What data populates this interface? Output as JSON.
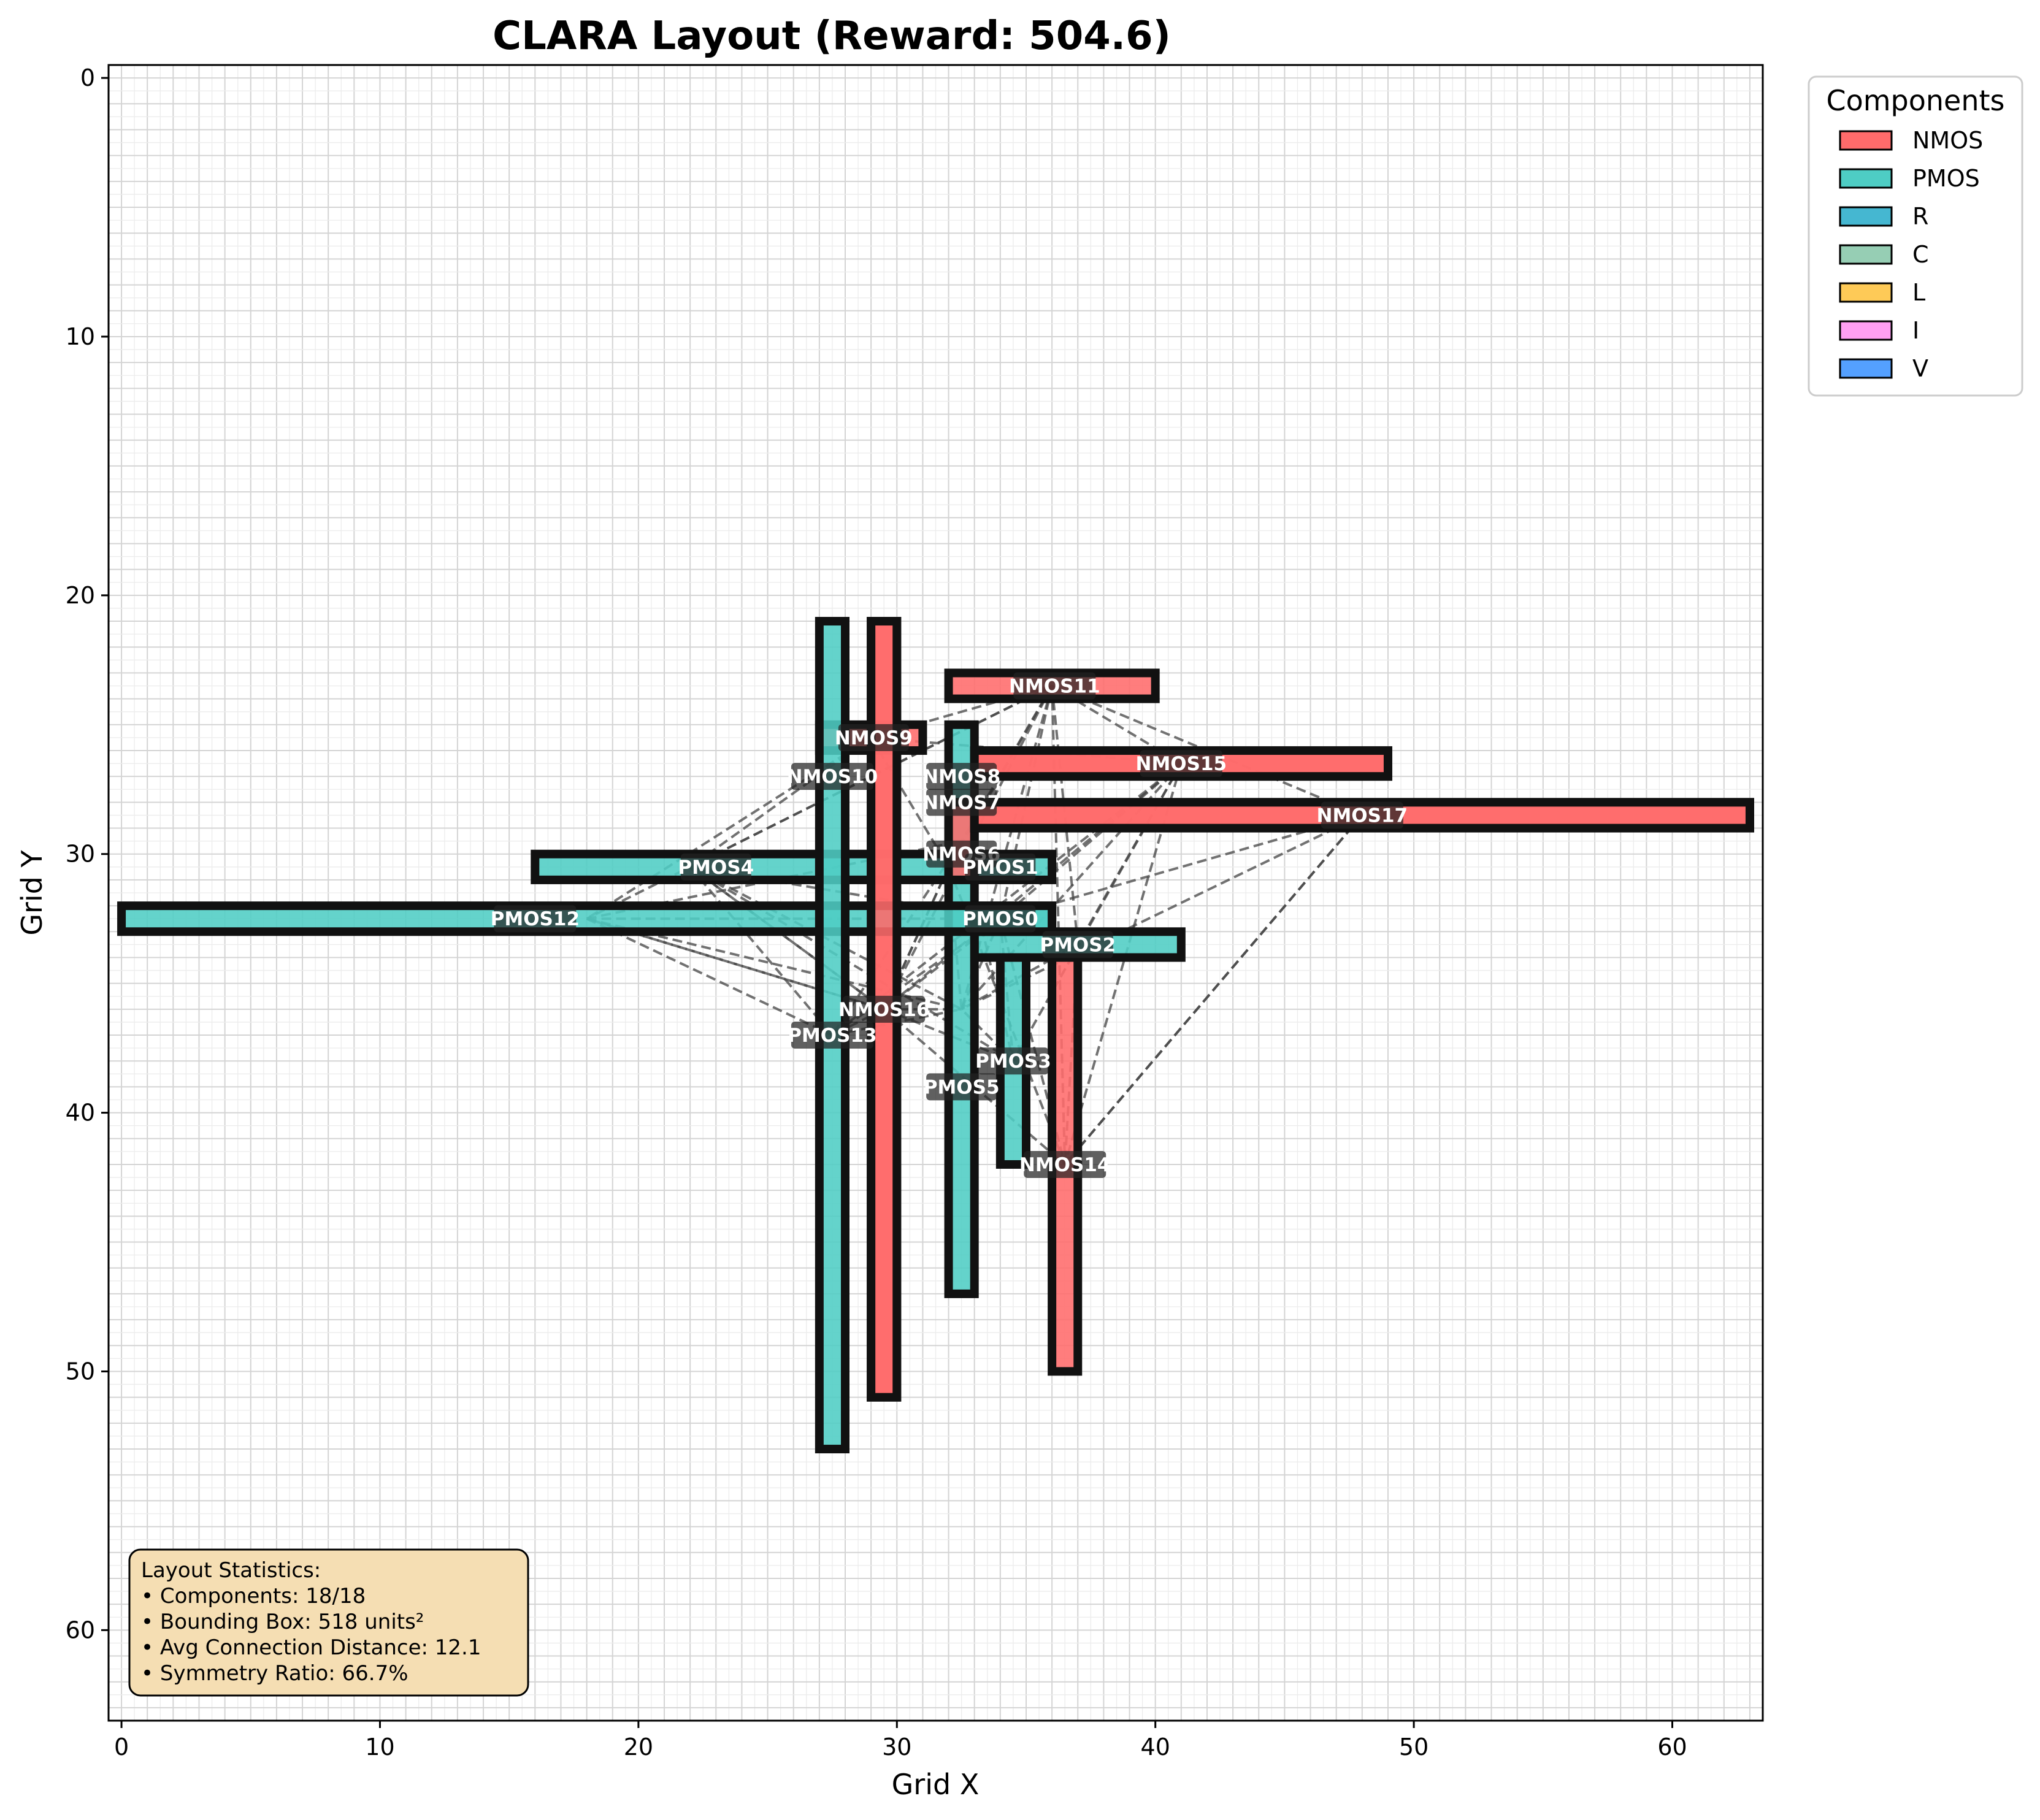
{
  "chart_data": {
    "type": "layout",
    "title": "CLARA Layout (Reward: 504.6)",
    "xlabel": "Grid X",
    "ylabel": "Grid Y",
    "xlim": [
      -0.5,
      63.5
    ],
    "ylim": [
      63.5,
      -0.5
    ],
    "y_inverted": true,
    "x_ticks": [
      0,
      10,
      20,
      30,
      40,
      50,
      60
    ],
    "y_ticks": [
      0,
      10,
      20,
      30,
      40,
      50,
      60
    ],
    "grid": true,
    "legend": {
      "title": "Components",
      "placement": "outside-top-right",
      "entries": [
        {
          "label": "NMOS",
          "color": "#ff6b6b"
        },
        {
          "label": "PMOS",
          "color": "#4ecdc4"
        },
        {
          "label": "R",
          "color": "#45b7d1"
        },
        {
          "label": "C",
          "color": "#96ceb4"
        },
        {
          "label": "L",
          "color": "#feca57"
        },
        {
          "label": "I",
          "color": "#ff9ff3"
        },
        {
          "label": "V",
          "color": "#54a0ff"
        }
      ]
    },
    "components": [
      {
        "name": "PMOS0",
        "type": "PMOS",
        "x": 32,
        "y": 32,
        "w": 4,
        "h": 1
      },
      {
        "name": "PMOS1",
        "type": "PMOS",
        "x": 28,
        "y": 30,
        "w": 8,
        "h": 1
      },
      {
        "name": "PMOS2",
        "type": "PMOS",
        "x": 33,
        "y": 33,
        "w": 8,
        "h": 1
      },
      {
        "name": "PMOS3",
        "type": "PMOS",
        "x": 34,
        "y": 34,
        "w": 1,
        "h": 8
      },
      {
        "name": "PMOS4",
        "type": "PMOS",
        "x": 16,
        "y": 30,
        "w": 12,
        "h": 1
      },
      {
        "name": "PMOS5",
        "type": "PMOS",
        "x": 32,
        "y": 25,
        "w": 1,
        "h": 22
      },
      {
        "name": "NMOS6",
        "type": "NMOS",
        "x": 32,
        "y": 28,
        "w": 1,
        "h": 3
      },
      {
        "name": "NMOS7",
        "type": "NMOS",
        "x": 33,
        "y": 28,
        "w": 30,
        "h": 1
      },
      {
        "name": "NMOS8",
        "type": "NMOS",
        "x": 33,
        "y": 26,
        "w": 16,
        "h": 1
      },
      {
        "name": "NMOS9",
        "type": "NMOS",
        "x": 27,
        "y": 25,
        "w": 4,
        "h": 1
      },
      {
        "name": "NMOS10",
        "type": "NMOS",
        "x": 29,
        "y": 21,
        "w": 1,
        "h": 30
      },
      {
        "name": "NMOS11",
        "type": "NMOS",
        "x": 32,
        "y": 23,
        "w": 8,
        "h": 1
      },
      {
        "name": "PMOS12",
        "type": "PMOS",
        "x": 0,
        "y": 32,
        "w": 36,
        "h": 1
      },
      {
        "name": "PMOS13",
        "type": "PMOS",
        "x": 27,
        "y": 21,
        "w": 1,
        "h": 32
      },
      {
        "name": "NMOS14",
        "type": "NMOS",
        "x": 36,
        "y": 34,
        "w": 1,
        "h": 16
      },
      {
        "name": "NMOS15",
        "type": "NMOS",
        "x": 33,
        "y": 26,
        "w": 16,
        "h": 1
      },
      {
        "name": "NMOS16",
        "type": "NMOS",
        "x": 29,
        "y": 21,
        "w": 1,
        "h": 30
      },
      {
        "name": "NMOS17",
        "type": "NMOS",
        "x": 33,
        "y": 28,
        "w": 30,
        "h": 1
      }
    ],
    "labels": [
      {
        "text": "NMOS11",
        "x": 36.1,
        "y": 23.5
      },
      {
        "text": "NMOS9",
        "x": 29.1,
        "y": 25.5
      },
      {
        "text": "NMOS15",
        "x": 41.0,
        "y": 26.5
      },
      {
        "text": "NMOS10",
        "x": 27.5,
        "y": 27.0
      },
      {
        "text": "NMOS8",
        "x": 32.5,
        "y": 27.0
      },
      {
        "text": "NMOS7",
        "x": 32.5,
        "y": 28.0
      },
      {
        "text": "NMOS17",
        "x": 48.0,
        "y": 28.5
      },
      {
        "text": "NMOS6",
        "x": 32.5,
        "y": 30.0
      },
      {
        "text": "PMOS1",
        "x": 34.0,
        "y": 30.5
      },
      {
        "text": "PMOS4",
        "x": 23.0,
        "y": 30.5
      },
      {
        "text": "PMOS12",
        "x": 16.0,
        "y": 32.5
      },
      {
        "text": "PMOS0",
        "x": 34.0,
        "y": 32.5
      },
      {
        "text": "PMOS2",
        "x": 37.0,
        "y": 33.5
      },
      {
        "text": "NMOS16",
        "x": 29.5,
        "y": 36.0
      },
      {
        "text": "PMOS13",
        "x": 27.5,
        "y": 37.0
      },
      {
        "text": "PMOS3",
        "x": 34.5,
        "y": 38.0
      },
      {
        "text": "PMOS5",
        "x": 32.5,
        "y": 39.0
      },
      {
        "text": "NMOS14",
        "x": 36.5,
        "y": 42.0
      }
    ],
    "connections": [
      [
        "NMOS11",
        "NMOS9"
      ],
      [
        "NMOS11",
        "NMOS10"
      ],
      [
        "NMOS11",
        "NMOS8"
      ],
      [
        "NMOS11",
        "NMOS7"
      ],
      [
        "NMOS11",
        "PMOS1"
      ],
      [
        "NMOS11",
        "PMOS0"
      ],
      [
        "NMOS11",
        "PMOS2"
      ],
      [
        "NMOS11",
        "NMOS14"
      ],
      [
        "NMOS11",
        "PMOS4"
      ],
      [
        "NMOS11",
        "PMOS12"
      ],
      [
        "NMOS11",
        "NMOS6"
      ],
      [
        "NMOS11",
        "PMOS5"
      ],
      [
        "NMOS15",
        "PMOS0"
      ],
      [
        "NMOS15",
        "NMOS8"
      ],
      [
        "NMOS15",
        "PMOS2"
      ],
      [
        "NMOS15",
        "NMOS14"
      ],
      [
        "NMOS15",
        "PMOS5"
      ],
      [
        "NMOS15",
        "NMOS10"
      ],
      [
        "NMOS15",
        "PMOS3"
      ],
      [
        "NMOS10",
        "PMOS4"
      ],
      [
        "NMOS10",
        "PMOS12"
      ],
      [
        "NMOS10",
        "PMOS13"
      ],
      [
        "NMOS10",
        "NMOS16"
      ],
      [
        "NMOS10",
        "PMOS1"
      ],
      [
        "NMOS10",
        "PMOS5"
      ],
      [
        "NMOS10",
        "PMOS0"
      ],
      [
        "NMOS9",
        "PMOS4"
      ],
      [
        "NMOS9",
        "PMOS12"
      ],
      [
        "NMOS9",
        "NMOS8"
      ],
      [
        "NMOS9",
        "PMOS1"
      ],
      [
        "PMOS4",
        "PMOS13"
      ],
      [
        "PMOS4",
        "NMOS16"
      ],
      [
        "PMOS4",
        "PMOS5"
      ],
      [
        "PMOS4",
        "PMOS3"
      ],
      [
        "PMOS4",
        "PMOS0"
      ],
      [
        "PMOS12",
        "PMOS13"
      ],
      [
        "PMOS12",
        "NMOS16"
      ],
      [
        "PMOS12",
        "PMOS5"
      ],
      [
        "PMOS12",
        "PMOS0"
      ],
      [
        "PMOS12",
        "NMOS6"
      ],
      [
        "PMOS13",
        "PMOS5"
      ],
      [
        "PMOS13",
        "PMOS0"
      ],
      [
        "NMOS16",
        "PMOS3"
      ],
      [
        "NMOS16",
        "PMOS1"
      ],
      [
        "NMOS16",
        "NMOS14"
      ],
      [
        "PMOS1",
        "PMOS5"
      ],
      [
        "PMOS1",
        "NMOS14"
      ],
      [
        "PMOS0",
        "PMOS3"
      ],
      [
        "PMOS0",
        "NMOS14"
      ],
      [
        "PMOS0",
        "PMOS5"
      ],
      [
        "PMOS2",
        "PMOS5"
      ],
      [
        "PMOS2",
        "NMOS14"
      ],
      [
        "NMOS6",
        "PMOS3"
      ],
      [
        "NMOS6",
        "PMOS13"
      ],
      [
        "NMOS8",
        "PMOS13"
      ],
      [
        "NMOS7",
        "PMOS5"
      ],
      [
        "NMOS7",
        "NMOS14"
      ],
      [
        "PMOS3",
        "PMOS5"
      ],
      [
        "NMOS17",
        "PMOS0"
      ],
      [
        "NMOS17",
        "NMOS14"
      ]
    ]
  },
  "stats": {
    "lines": [
      "Layout Statistics:",
      "• Components: 18/18",
      "• Bounding Box: 518 units²",
      "• Avg Connection Distance: 12.1",
      "• Symmetry Ratio: 66.7%"
    ]
  }
}
